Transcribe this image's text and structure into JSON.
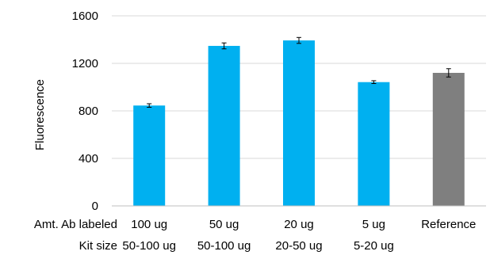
{
  "chart_data": {
    "type": "bar",
    "title": "",
    "xlabel": "",
    "ylabel": "Fluorescence",
    "ylim": [
      0,
      1600
    ],
    "yticks": [
      0,
      400,
      800,
      1200,
      1600
    ],
    "grid": "horizontal",
    "legend": "none",
    "row_headers": [
      "Amt. Ab labeled",
      "Kit size"
    ],
    "categories": [
      {
        "amount": "100 ug",
        "kit": "50-100 ug",
        "value": 845,
        "error": 15,
        "color": "#00B0F0"
      },
      {
        "amount": "50 ug",
        "kit": "50-100 ug",
        "value": 1347,
        "error": 25,
        "color": "#00B0F0"
      },
      {
        "amount": "20 ug",
        "kit": "20-50 ug",
        "value": 1393,
        "error": 25,
        "color": "#00B0F0"
      },
      {
        "amount": "5 ug",
        "kit": "5-20 ug",
        "value": 1042,
        "error": 12,
        "color": "#00B0F0"
      },
      {
        "amount": "Reference",
        "kit": "",
        "value": 1120,
        "error": 35,
        "color": "#7F7F7F"
      }
    ]
  }
}
